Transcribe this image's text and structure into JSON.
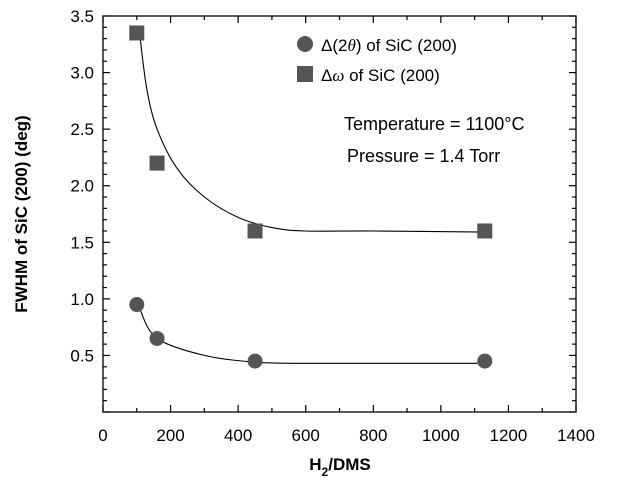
{
  "chart_data": {
    "type": "scatter",
    "xlabel": {
      "main": "H",
      "sub": "2",
      "rest": "/DMS"
    },
    "ylabel": "FWHM of SiC (200) (deg)",
    "xlim": [
      0,
      1400
    ],
    "ylim": [
      0,
      3.5
    ],
    "xticks": [
      "0",
      "200",
      "400",
      "600",
      "800",
      "1000",
      "1200",
      "1400"
    ],
    "yticks": [
      "0.5",
      "1.0",
      "1.5",
      "2.0",
      "2.5",
      "3.0",
      "3.5"
    ],
    "legend_position": "top-right",
    "series": [
      {
        "name_prefix": "Δ(2",
        "name_greek": "θ",
        "name_suffix": ") of SiC (200)",
        "marker": "circle",
        "color": "#555555",
        "points": [
          [
            100,
            0.95
          ],
          [
            160,
            0.65
          ],
          [
            450,
            0.45
          ],
          [
            1130,
            0.45
          ]
        ],
        "fit_curve": [
          [
            110,
            0.9
          ],
          [
            160,
            0.65
          ],
          [
            300,
            0.5
          ],
          [
            450,
            0.44
          ],
          [
            600,
            0.43
          ],
          [
            800,
            0.43
          ],
          [
            1130,
            0.43
          ]
        ]
      },
      {
        "name_prefix": "Δ",
        "name_greek": "ω",
        "name_suffix": " of SiC (200)",
        "marker": "square",
        "color": "#555555",
        "points": [
          [
            100,
            3.35
          ],
          [
            160,
            2.2
          ],
          [
            450,
            1.6
          ],
          [
            1130,
            1.6
          ]
        ],
        "fit_curve": [
          [
            110,
            3.3
          ],
          [
            130,
            2.85
          ],
          [
            160,
            2.5
          ],
          [
            220,
            2.15
          ],
          [
            300,
            1.9
          ],
          [
            400,
            1.72
          ],
          [
            500,
            1.63
          ],
          [
            600,
            1.6
          ],
          [
            800,
            1.6
          ],
          [
            1130,
            1.59
          ]
        ]
      }
    ],
    "annotations": [
      "Temperature = 1100°C",
      "Pressure = 1.4 Torr"
    ]
  }
}
